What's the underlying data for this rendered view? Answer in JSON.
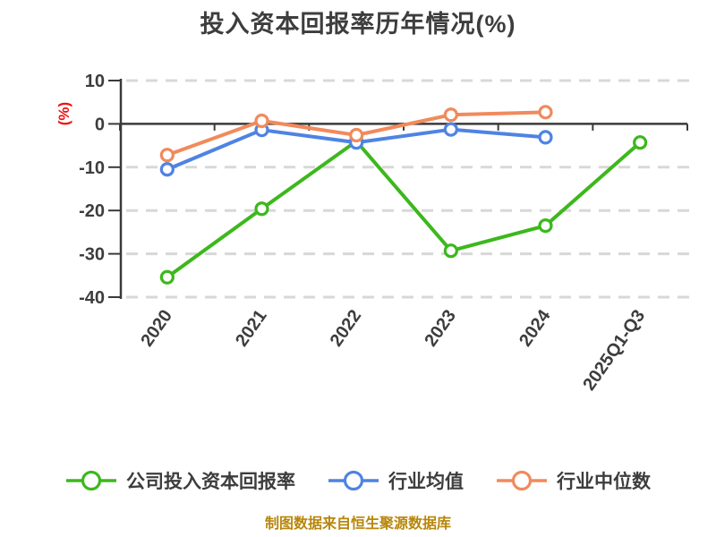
{
  "page": {
    "background": "#ffffff"
  },
  "chart_data": {
    "type": "line",
    "title": "投入资本回报率历年情况(%)",
    "title_color": "#3d3d3d",
    "ylabel": "(%)",
    "ylabel_color": "#ee1111",
    "categories": [
      "2020",
      "2021",
      "2022",
      "2023",
      "2024",
      "2025Q1-Q3"
    ],
    "yticks": [
      10,
      0,
      -10,
      -20,
      -30,
      -40
    ],
    "ylim": [
      -40,
      10
    ],
    "grid": {
      "horizontal": true,
      "style": "dashed",
      "color": "#d8d8d8"
    },
    "axis_color": "#3a3a3a",
    "tick_label_color": "#3d3d3d",
    "legend_position": "bottom",
    "marker_style": "open-circle",
    "series": [
      {
        "name": "公司投入资本回报率",
        "color": "#3cb81c",
        "values": [
          -35.4,
          -19.6,
          -4.0,
          -29.3,
          -23.5,
          -4.3
        ]
      },
      {
        "name": "行业均值",
        "color": "#4f83e3",
        "values": [
          -10.5,
          -1.4,
          -4.3,
          -1.3,
          -3.1,
          null
        ]
      },
      {
        "name": "行业中位数",
        "color": "#f18a5c",
        "values": [
          -7.2,
          0.7,
          -2.6,
          2.1,
          2.7,
          null
        ]
      }
    ],
    "footnote": "制图数据来自恒生聚源数据库",
    "footnote_color": "#b8860b"
  }
}
